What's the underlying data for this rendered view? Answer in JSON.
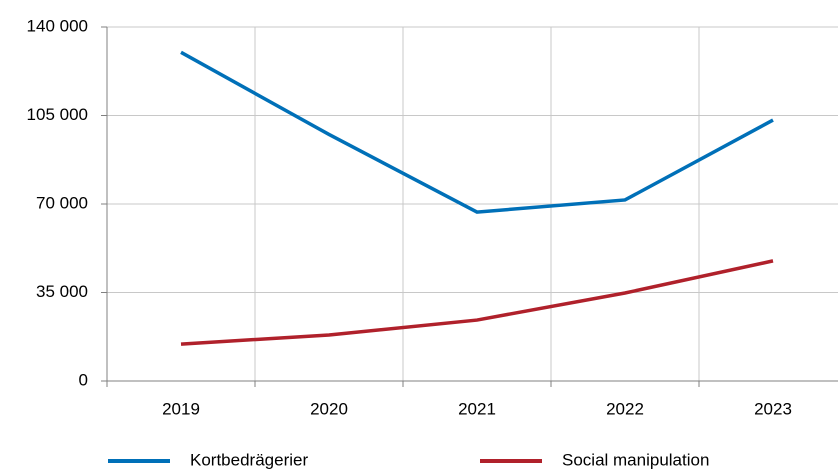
{
  "chart_data": {
    "type": "line",
    "categories": [
      "2019",
      "2020",
      "2021",
      "2022",
      "2023"
    ],
    "series": [
      {
        "name": "Kortbedrägerier",
        "color": "#0070b8",
        "values": [
          130000,
          97500,
          66800,
          71600,
          103200
        ]
      },
      {
        "name": "Social manipulation",
        "color": "#b0212b",
        "values": [
          14600,
          18200,
          24100,
          34800,
          47500
        ]
      }
    ],
    "ylim": [
      0,
      140000
    ],
    "yticks": [
      0,
      {
        "value": 35000,
        "label": "35 000"
      },
      {
        "value": 70000,
        "label": "70 000"
      },
      {
        "value": 105000,
        "label": "105 000"
      },
      {
        "value": 140000,
        "label": "140 000"
      }
    ],
    "grid": true,
    "legend": "bottom"
  }
}
